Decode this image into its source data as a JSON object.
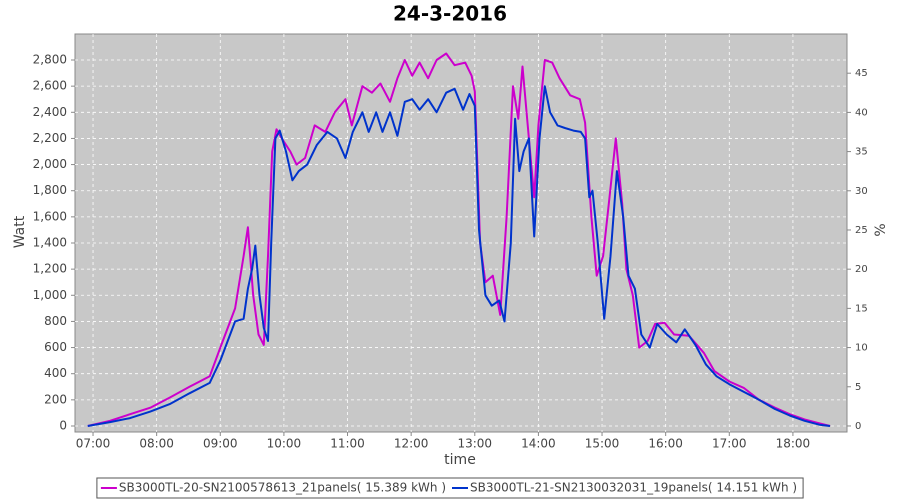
{
  "chart_data": {
    "type": "line",
    "title": "24-3-2016",
    "x_label": "time",
    "y_label": "Watt",
    "y2_label": "%",
    "xlim": [
      "06:43",
      "18:51"
    ],
    "xticks": [
      "07:00",
      "08:00",
      "09:00",
      "10:00",
      "11:00",
      "12:00",
      "13:00",
      "14:00",
      "15:00",
      "16:00",
      "17:00",
      "18:00"
    ],
    "ylim": [
      -46,
      2999
    ],
    "yticks": [
      0,
      200,
      400,
      600,
      800,
      {
        "value": 1000,
        "label": "1,000"
      },
      {
        "value": 1200,
        "label": "1,200"
      },
      {
        "value": 1400,
        "label": "1,400"
      },
      {
        "value": 1600,
        "label": "1,600"
      },
      {
        "value": 1800,
        "label": "1,800"
      },
      {
        "value": 2000,
        "label": "2,000"
      },
      {
        "value": 2200,
        "label": "2,200"
      },
      {
        "value": 2400,
        "label": "2,400"
      },
      {
        "value": 2600,
        "label": "2,600"
      },
      {
        "value": 2800,
        "label": "2,800"
      }
    ],
    "y2lim": [
      -0.77,
      50
    ],
    "y2ticks": [
      0,
      5,
      10,
      15,
      20,
      25,
      30,
      35,
      40,
      45
    ],
    "grid": true,
    "background": "#c8c8c8",
    "legend": "bottom",
    "series": [
      {
        "name": "SB3000TL-20-SN2100578613_21panels( 15.389 kWh )",
        "color": "#cc00cc",
        "x": [
          "06:55",
          "07:16",
          "07:35",
          "07:54",
          "08:13",
          "08:31",
          "08:50",
          "09:00",
          "09:14",
          "09:22",
          "09:26",
          "09:31",
          "09:36",
          "09:41",
          "09:45",
          "09:49",
          "09:53",
          "09:58",
          "10:06",
          "10:12",
          "10:20",
          "10:29",
          "10:39",
          "10:48",
          "10:58",
          "11:04",
          "11:14",
          "11:23",
          "11:31",
          "11:40",
          "11:47",
          "11:54",
          "12:01",
          "12:08",
          "12:16",
          "12:24",
          "12:33",
          "12:41",
          "12:51",
          "12:57",
          "13:00",
          "13:05",
          "13:10",
          "13:17",
          "13:24",
          "13:30",
          "13:36",
          "13:41",
          "13:45",
          "13:51",
          "13:56",
          "14:00",
          "14:06",
          "14:13",
          "14:20",
          "14:30",
          "14:39",
          "14:44",
          "14:50",
          "14:55",
          "15:01",
          "15:07",
          "15:13",
          "15:19",
          "15:23",
          "15:29",
          "15:35",
          "15:43",
          "15:50",
          "15:59",
          "16:08",
          "16:22",
          "16:36",
          "16:46",
          "17:00",
          "17:14",
          "17:28",
          "17:43",
          "17:57",
          "18:11",
          "18:25",
          "18:35"
        ],
        "values": [
          0,
          40,
          90,
          140,
          220,
          300,
          380,
          600,
          900,
          1300,
          1520,
          1000,
          700,
          620,
          1300,
          2100,
          2270,
          2200,
          2100,
          2000,
          2050,
          2300,
          2250,
          2400,
          2500,
          2300,
          2600,
          2550,
          2620,
          2480,
          2660,
          2800,
          2680,
          2780,
          2660,
          2800,
          2850,
          2760,
          2780,
          2680,
          2560,
          1400,
          1100,
          1150,
          850,
          1600,
          2600,
          2350,
          2750,
          2200,
          1750,
          2300,
          2800,
          2780,
          2660,
          2530,
          2500,
          2320,
          1600,
          1150,
          1300,
          1750,
          2200,
          1700,
          1200,
          1000,
          600,
          650,
          780,
          790,
          700,
          690,
          560,
          420,
          340,
          290,
          200,
          140,
          90,
          50,
          20,
          0
        ]
      },
      {
        "name": "SB3000TL-21-SN2130032031_19panels( 14.151 kWh )",
        "color": "#0033cc",
        "x": [
          "06:55",
          "07:16",
          "07:35",
          "07:54",
          "08:13",
          "08:31",
          "08:50",
          "09:00",
          "09:14",
          "09:22",
          "09:26",
          "09:30",
          "09:33",
          "09:37",
          "09:41",
          "09:45",
          "09:48",
          "09:52",
          "09:56",
          "10:02",
          "10:08",
          "10:14",
          "10:22",
          "10:31",
          "10:41",
          "10:50",
          "10:58",
          "11:05",
          "11:14",
          "11:20",
          "11:27",
          "11:33",
          "11:40",
          "11:47",
          "11:54",
          "12:01",
          "12:08",
          "12:16",
          "12:24",
          "12:33",
          "12:41",
          "12:49",
          "12:55",
          "13:00",
          "13:04",
          "13:10",
          "13:16",
          "13:23",
          "13:28",
          "13:34",
          "13:38",
          "13:42",
          "13:46",
          "13:51",
          "13:56",
          "14:01",
          "14:06",
          "14:11",
          "14:18",
          "14:25",
          "14:33",
          "14:40",
          "14:44",
          "14:48",
          "14:51",
          "14:56",
          "15:02",
          "15:08",
          "15:14",
          "15:20",
          "15:25",
          "15:31",
          "15:37",
          "15:45",
          "15:52",
          "16:01",
          "16:10",
          "16:18",
          "16:28",
          "16:38",
          "16:48",
          "17:00",
          "17:14",
          "17:28",
          "17:43",
          "17:57",
          "18:11",
          "18:25",
          "18:35"
        ],
        "values": [
          0,
          30,
          60,
          110,
          170,
          250,
          330,
          500,
          800,
          820,
          1050,
          1200,
          1380,
          1000,
          750,
          650,
          1400,
          2200,
          2260,
          2100,
          1880,
          1950,
          2000,
          2150,
          2250,
          2200,
          2050,
          2250,
          2400,
          2250,
          2400,
          2250,
          2400,
          2220,
          2480,
          2500,
          2420,
          2500,
          2400,
          2550,
          2580,
          2420,
          2540,
          2450,
          1500,
          1000,
          920,
          960,
          800,
          1400,
          2350,
          1950,
          2100,
          2200,
          1450,
          2200,
          2600,
          2400,
          2300,
          2280,
          2260,
          2250,
          2200,
          1750,
          1800,
          1400,
          820,
          1300,
          1950,
          1600,
          1150,
          1050,
          700,
          600,
          780,
          700,
          640,
          740,
          620,
          470,
          380,
          320,
          260,
          200,
          130,
          80,
          40,
          10,
          0
        ]
      }
    ]
  }
}
